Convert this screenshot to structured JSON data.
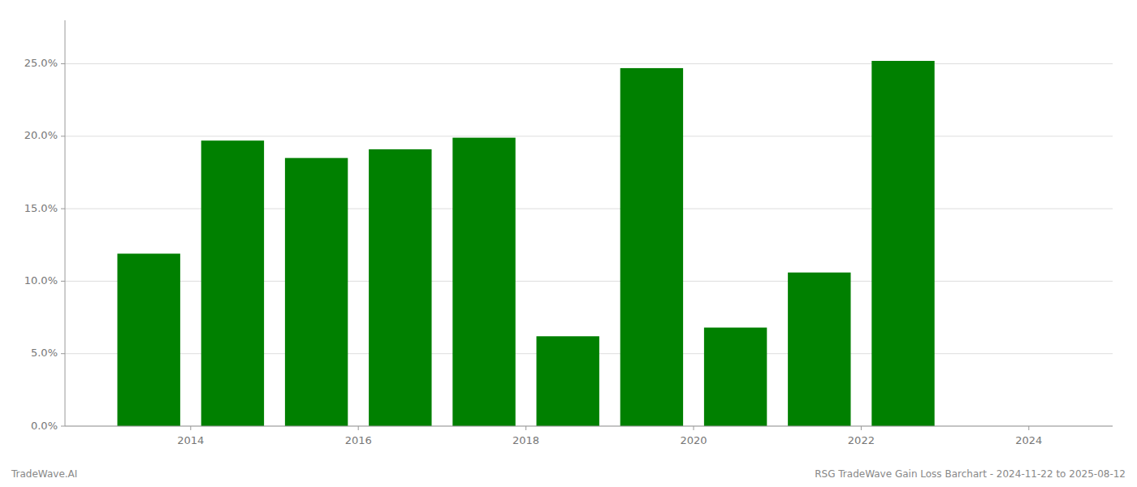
{
  "chart_data": {
    "type": "bar",
    "x": [
      2013.5,
      2014.5,
      2015.5,
      2016.5,
      2017.5,
      2018.5,
      2019.5,
      2020.5,
      2021.5,
      2022.5
    ],
    "values": [
      0.119,
      0.197,
      0.185,
      0.191,
      0.199,
      0.062,
      0.247,
      0.068,
      0.106,
      0.252
    ],
    "color": "#008000",
    "xlim": [
      2012.5,
      2025.0
    ],
    "xticks": [
      2014,
      2016,
      2018,
      2020,
      2022,
      2024
    ],
    "ylim": [
      0.0,
      0.28
    ],
    "yticks": [
      {
        "value": 0.0,
        "label": "0.0%"
      },
      {
        "value": 0.05,
        "label": "5.0%"
      },
      {
        "value": 0.1,
        "label": "10.0%"
      },
      {
        "value": 0.15,
        "label": "15.0%"
      },
      {
        "value": 0.2,
        "label": "20.0%"
      },
      {
        "value": 0.25,
        "label": "25.0%"
      }
    ],
    "grid": true,
    "annotations": [
      "TradeWave.AI",
      "RSG TradeWave Gain Loss Barchart - 2024-11-22 to 2025-08-12"
    ]
  }
}
